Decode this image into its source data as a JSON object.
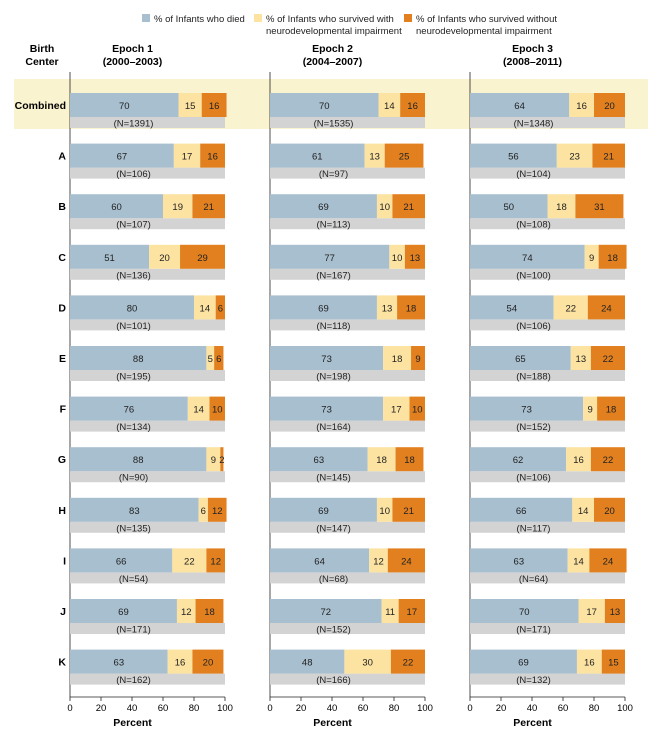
{
  "chart_data": {
    "type": "bar",
    "stacked": true,
    "orientation": "horizontal",
    "legend": {
      "position": "top",
      "items": [
        {
          "key": "died",
          "line1": "% of Infants who died",
          "line2": "",
          "color": "#a8bfcf"
        },
        {
          "key": "with",
          "line1": "% of Infants who survived with",
          "line2": "neurodevelopmental impairment",
          "color": "#fce3a2"
        },
        {
          "key": "without",
          "line1": "% of Infants who survived without",
          "line2": "neurodevelopmental impairment",
          "color": "#e2801f"
        }
      ]
    },
    "row_header": [
      "Birth",
      "Center"
    ],
    "combined_highlight": "#faf3cf",
    "n_bar_color": "#d3d3d3",
    "xlabel": "Percent",
    "xlim": [
      0,
      100
    ],
    "xticks": [
      "0",
      "20",
      "40",
      "60",
      "80",
      "100"
    ],
    "epochs": [
      {
        "title": "Epoch 1",
        "years": "(2000–2003)"
      },
      {
        "title": "Epoch 2",
        "years": "(2004–2007)"
      },
      {
        "title": "Epoch 3",
        "years": "(2008–2011)"
      }
    ],
    "rows": [
      {
        "label": "Combined",
        "bold": true,
        "epochs": [
          {
            "values": [
              70,
              15,
              16
            ],
            "n": "(N=1391)"
          },
          {
            "values": [
              70,
              14,
              16
            ],
            "n": "(N=1535)"
          },
          {
            "values": [
              64,
              16,
              20
            ],
            "n": "(N=1348)"
          }
        ]
      },
      {
        "label": "A",
        "epochs": [
          {
            "values": [
              67,
              17,
              16
            ],
            "n": "(N=106)"
          },
          {
            "values": [
              61,
              13,
              25
            ],
            "n": "(N=97)"
          },
          {
            "values": [
              56,
              23,
              21
            ],
            "n": "(N=104)"
          }
        ]
      },
      {
        "label": "B",
        "epochs": [
          {
            "values": [
              60,
              19,
              21
            ],
            "n": "(N=107)"
          },
          {
            "values": [
              69,
              10,
              21
            ],
            "n": "(N=113)"
          },
          {
            "values": [
              50,
              18,
              31
            ],
            "n": "(N=108)"
          }
        ]
      },
      {
        "label": "C",
        "epochs": [
          {
            "values": [
              51,
              20,
              29
            ],
            "n": "(N=136)"
          },
          {
            "values": [
              77,
              10,
              13
            ],
            "n": "(N=167)"
          },
          {
            "values": [
              74,
              9,
              18
            ],
            "n": "(N=100)"
          }
        ]
      },
      {
        "label": "D",
        "epochs": [
          {
            "values": [
              80,
              14,
              6
            ],
            "n": "(N=101)"
          },
          {
            "values": [
              69,
              13,
              18
            ],
            "n": "(N=118)"
          },
          {
            "values": [
              54,
              22,
              24
            ],
            "n": "(N=106)"
          }
        ]
      },
      {
        "label": "E",
        "epochs": [
          {
            "values": [
              88,
              5,
              6
            ],
            "n": "(N=195)"
          },
          {
            "values": [
              73,
              18,
              9
            ],
            "n": "(N=198)"
          },
          {
            "values": [
              65,
              13,
              22
            ],
            "n": "(N=188)"
          }
        ]
      },
      {
        "label": "F",
        "epochs": [
          {
            "values": [
              76,
              14,
              10
            ],
            "n": "(N=134)"
          },
          {
            "values": [
              73,
              17,
              10
            ],
            "n": "(N=164)"
          },
          {
            "values": [
              73,
              9,
              18
            ],
            "n": "(N=152)"
          }
        ]
      },
      {
        "label": "G",
        "epochs": [
          {
            "values": [
              88,
              9,
              2
            ],
            "n": "(N=90)"
          },
          {
            "values": [
              63,
              18,
              18
            ],
            "n": "(N=145)"
          },
          {
            "values": [
              62,
              16,
              22
            ],
            "n": "(N=106)"
          }
        ]
      },
      {
        "label": "H",
        "epochs": [
          {
            "values": [
              83,
              6,
              12
            ],
            "n": "(N=135)"
          },
          {
            "values": [
              69,
              10,
              21
            ],
            "n": "(N=147)"
          },
          {
            "values": [
              66,
              14,
              20
            ],
            "n": "(N=117)"
          }
        ]
      },
      {
        "label": "I",
        "epochs": [
          {
            "values": [
              66,
              22,
              12
            ],
            "n": "(N=54)"
          },
          {
            "values": [
              64,
              12,
              24
            ],
            "n": "(N=68)"
          },
          {
            "values": [
              63,
              14,
              24
            ],
            "n": "(N=64)"
          }
        ]
      },
      {
        "label": "J",
        "epochs": [
          {
            "values": [
              69,
              12,
              18
            ],
            "n": "(N=171)"
          },
          {
            "values": [
              72,
              11,
              17
            ],
            "n": "(N=152)"
          },
          {
            "values": [
              70,
              17,
              13
            ],
            "n": "(N=171)"
          }
        ]
      },
      {
        "label": "K",
        "epochs": [
          {
            "values": [
              63,
              16,
              20
            ],
            "n": "(N=162)"
          },
          {
            "values": [
              48,
              30,
              22
            ],
            "n": "(N=166)"
          },
          {
            "values": [
              69,
              16,
              15
            ],
            "n": "(N=132)"
          }
        ]
      }
    ]
  }
}
